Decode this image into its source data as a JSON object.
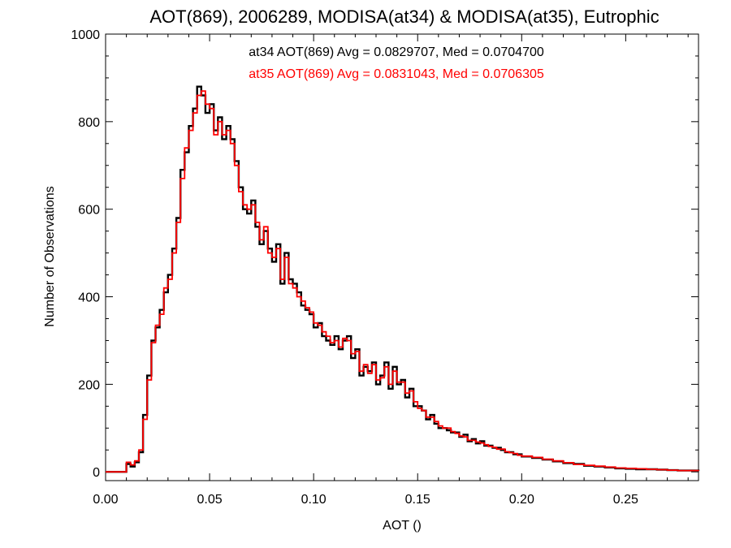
{
  "chart_data": {
    "type": "line",
    "step": true,
    "title": "AOT(869), 2006289, MODISA(at34) & MODISA(at35), Eutrophic",
    "xlabel": "AOT ()",
    "ylabel": "Number of Observations",
    "xlim": [
      0.0,
      0.285
    ],
    "ylim": [
      -20,
      1000
    ],
    "xticks": [
      0.0,
      0.05,
      0.1,
      0.15,
      0.2,
      0.25
    ],
    "xtick_labels": [
      "0.00",
      "0.05",
      "0.10",
      "0.15",
      "0.20",
      "0.25"
    ],
    "yticks": [
      0,
      200,
      400,
      600,
      800,
      1000
    ],
    "ytick_labels": [
      "0",
      "200",
      "400",
      "600",
      "800",
      "1000"
    ],
    "grid": false,
    "annotations": [
      {
        "text": "at34 AOT(869) Avg = 0.0829707, Med = 0.0704700",
        "color": "#000000"
      },
      {
        "text": "at35 AOT(869) Avg = 0.0831043, Med = 0.0706305",
        "color": "#ff0000"
      }
    ],
    "series": [
      {
        "color": "#000000",
        "x": [
          0.0,
          0.01,
          0.012,
          0.014,
          0.016,
          0.018,
          0.02,
          0.022,
          0.024,
          0.026,
          0.028,
          0.03,
          0.032,
          0.034,
          0.036,
          0.038,
          0.04,
          0.042,
          0.044,
          0.046,
          0.048,
          0.05,
          0.052,
          0.054,
          0.056,
          0.058,
          0.06,
          0.062,
          0.064,
          0.066,
          0.068,
          0.07,
          0.072,
          0.074,
          0.076,
          0.078,
          0.08,
          0.082,
          0.084,
          0.086,
          0.088,
          0.09,
          0.092,
          0.094,
          0.096,
          0.098,
          0.1,
          0.102,
          0.104,
          0.106,
          0.108,
          0.11,
          0.112,
          0.114,
          0.116,
          0.118,
          0.12,
          0.122,
          0.124,
          0.126,
          0.128,
          0.13,
          0.132,
          0.134,
          0.136,
          0.138,
          0.14,
          0.142,
          0.144,
          0.146,
          0.148,
          0.15,
          0.152,
          0.154,
          0.156,
          0.158,
          0.16,
          0.162,
          0.164,
          0.166,
          0.168,
          0.17,
          0.172,
          0.174,
          0.176,
          0.178,
          0.18,
          0.182,
          0.184,
          0.186,
          0.188,
          0.19,
          0.192,
          0.194,
          0.196,
          0.198,
          0.2,
          0.205,
          0.21,
          0.215,
          0.22,
          0.225,
          0.23,
          0.235,
          0.24,
          0.245,
          0.25,
          0.255,
          0.26,
          0.265,
          0.27,
          0.275,
          0.28,
          0.285
        ],
        "values": [
          0,
          18,
          12,
          22,
          45,
          130,
          220,
          300,
          330,
          370,
          410,
          450,
          510,
          580,
          690,
          730,
          790,
          830,
          880,
          860,
          820,
          840,
          780,
          810,
          760,
          790,
          760,
          710,
          650,
          600,
          590,
          620,
          560,
          520,
          550,
          510,
          480,
          520,
          430,
          500,
          440,
          430,
          410,
          380,
          370,
          360,
          330,
          340,
          310,
          300,
          290,
          310,
          280,
          300,
          310,
          260,
          280,
          220,
          240,
          230,
          250,
          200,
          220,
          250,
          190,
          240,
          200,
          210,
          170,
          190,
          150,
          150,
          140,
          120,
          130,
          110,
          100,
          100,
          95,
          90,
          90,
          80,
          85,
          70,
          75,
          65,
          70,
          60,
          60,
          55,
          55,
          50,
          45,
          45,
          40,
          40,
          35,
          32,
          28,
          24,
          20,
          18,
          14,
          12,
          10,
          8,
          7,
          6,
          6,
          5,
          4,
          3,
          3,
          2
        ]
      },
      {
        "color": "#ff0000",
        "x": [
          0.0,
          0.01,
          0.012,
          0.014,
          0.016,
          0.018,
          0.02,
          0.022,
          0.024,
          0.026,
          0.028,
          0.03,
          0.032,
          0.034,
          0.036,
          0.038,
          0.04,
          0.042,
          0.044,
          0.046,
          0.048,
          0.05,
          0.052,
          0.054,
          0.056,
          0.058,
          0.06,
          0.062,
          0.064,
          0.066,
          0.068,
          0.07,
          0.072,
          0.074,
          0.076,
          0.078,
          0.08,
          0.082,
          0.084,
          0.086,
          0.088,
          0.09,
          0.092,
          0.094,
          0.096,
          0.098,
          0.1,
          0.102,
          0.104,
          0.106,
          0.108,
          0.11,
          0.112,
          0.114,
          0.116,
          0.118,
          0.12,
          0.122,
          0.124,
          0.126,
          0.128,
          0.13,
          0.132,
          0.134,
          0.136,
          0.138,
          0.14,
          0.142,
          0.144,
          0.146,
          0.148,
          0.15,
          0.152,
          0.154,
          0.156,
          0.158,
          0.16,
          0.162,
          0.164,
          0.166,
          0.168,
          0.17,
          0.172,
          0.174,
          0.176,
          0.178,
          0.18,
          0.182,
          0.184,
          0.186,
          0.188,
          0.19,
          0.192,
          0.194,
          0.196,
          0.198,
          0.2,
          0.205,
          0.21,
          0.215,
          0.22,
          0.225,
          0.23,
          0.235,
          0.24,
          0.245,
          0.25,
          0.255,
          0.26,
          0.265,
          0.27,
          0.275,
          0.28,
          0.285
        ],
        "values": [
          0,
          22,
          16,
          25,
          50,
          120,
          210,
          295,
          335,
          360,
          420,
          440,
          500,
          570,
          670,
          740,
          780,
          820,
          860,
          870,
          840,
          830,
          770,
          800,
          770,
          780,
          750,
          700,
          640,
          610,
          600,
          610,
          570,
          530,
          560,
          500,
          490,
          510,
          440,
          490,
          430,
          420,
          400,
          390,
          375,
          365,
          340,
          335,
          320,
          310,
          295,
          300,
          285,
          305,
          300,
          270,
          275,
          230,
          245,
          225,
          245,
          210,
          215,
          240,
          200,
          230,
          205,
          205,
          180,
          185,
          160,
          145,
          140,
          125,
          125,
          115,
          105,
          100,
          100,
          92,
          88,
          82,
          80,
          72,
          72,
          68,
          66,
          62,
          58,
          56,
          52,
          52,
          46,
          44,
          42,
          38,
          36,
          33,
          29,
          25,
          21,
          17,
          15,
          13,
          11,
          9,
          8,
          7,
          6,
          5,
          4,
          3,
          3,
          2
        ]
      }
    ]
  }
}
